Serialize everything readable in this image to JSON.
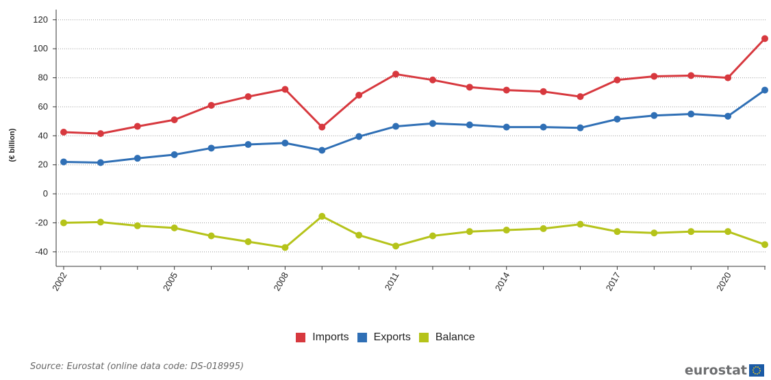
{
  "chart_data": {
    "type": "line",
    "ylabel": "(€ billion)",
    "xlabel": "",
    "ylim": [
      -50,
      127
    ],
    "yticks": [
      120,
      100,
      80,
      60,
      40,
      20,
      0,
      -20,
      -40
    ],
    "xtick_labels": [
      "2002",
      "2005",
      "2008",
      "2011",
      "2014",
      "2017",
      "2020"
    ],
    "x": [
      2002,
      2003,
      2004,
      2005,
      2006,
      2007,
      2008,
      2009,
      2010,
      2011,
      2012,
      2013,
      2014,
      2015,
      2016,
      2017,
      2018,
      2019,
      2020,
      2021
    ],
    "grid": true,
    "legend_position": "bottom",
    "series": [
      {
        "name": "Imports",
        "color": "#d7383e",
        "values": [
          42.5,
          41.5,
          46.5,
          51,
          61,
          67,
          72,
          46,
          68,
          82.5,
          78.5,
          73.5,
          71.5,
          70.5,
          67,
          78.5,
          81,
          81.5,
          80,
          107
        ]
      },
      {
        "name": "Exports",
        "color": "#2f6fb5",
        "values": [
          22,
          21.5,
          24.5,
          27,
          31.5,
          34,
          35,
          30,
          39.5,
          46.5,
          48.5,
          47.5,
          46,
          46,
          45.5,
          51.5,
          54,
          55,
          53.5,
          71.5
        ]
      },
      {
        "name": "Balance",
        "color": "#b5c31a",
        "values": [
          -20,
          -19.5,
          -22,
          -23.5,
          -29,
          -33,
          -37,
          -15.5,
          -28.5,
          -36,
          -29,
          -26,
          -25,
          -24,
          -21,
          -26,
          -27,
          -26,
          -26,
          -35
        ]
      }
    ]
  },
  "source_text": "Source: Eurostat (online data code: DS-018995)",
  "logo": {
    "text": "eurostat"
  }
}
